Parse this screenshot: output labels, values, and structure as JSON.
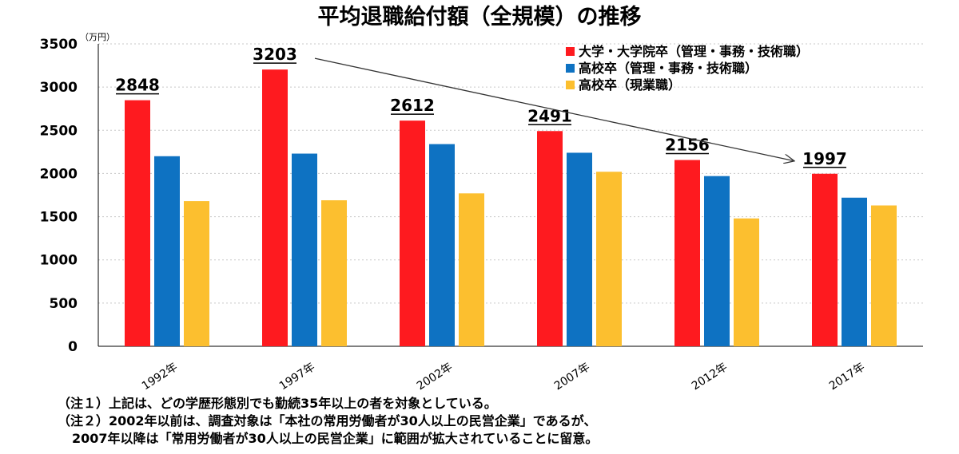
{
  "colors": {
    "red": "#fe1a1f",
    "blue": "#0e72c2",
    "yellow": "#fcbf2f"
  },
  "chart_data": {
    "type": "bar",
    "title": "平均退職給付額（全規模）の推移",
    "ylabel": "（万円）",
    "xlabel": "",
    "ylim": [
      0,
      3500
    ],
    "yticks": [
      0,
      500,
      1000,
      1500,
      2000,
      2500,
      3000,
      3500
    ],
    "grid": true,
    "legend_position": "top-right",
    "categories": [
      "1992年",
      "1997年",
      "2002年",
      "2007年",
      "2012年",
      "2017年"
    ],
    "series": [
      {
        "name": "大学・大学院卒（管理・事務・技術職）",
        "color": "#fe1a1f",
        "values": [
          2848,
          3203,
          2612,
          2491,
          2156,
          1997
        ]
      },
      {
        "name": "高校卒（管理・事務・技術職）",
        "color": "#0e72c2",
        "values": [
          2200,
          2230,
          2340,
          2240,
          1970,
          1720
        ]
      },
      {
        "name": "高校卒（現業職）",
        "color": "#fcbf2f",
        "values": [
          1680,
          1690,
          1770,
          2020,
          1480,
          1630
        ]
      }
    ],
    "data_labels": [
      "2848",
      "3203",
      "2612",
      "2491",
      "2156",
      "1997"
    ],
    "annotation": "arrow from 1997年 peak to 2017年 showing downward trend"
  },
  "notes": [
    "（注１）上記は、どの学歴形態別でも勤続35年以上の者を対象としている。",
    "（注２）2002年以前は、調査対象は「本社の常用労働者が30人以上の民営企業」であるが、",
    "2007年以降は「常用労働者が30人以上の民営企業」に範囲が拡大されていることに留意。"
  ]
}
